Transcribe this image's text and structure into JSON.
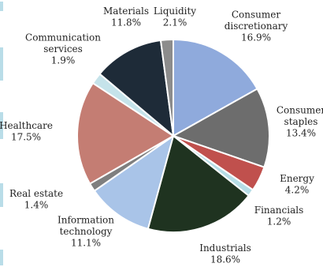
{
  "chart_data": {
    "type": "pie",
    "title": "",
    "slices": [
      {
        "label_lines": [
          "Consumer",
          "discretionary"
        ],
        "value_text": "16.9%",
        "value": 16.9,
        "color": "#8faadc"
      },
      {
        "label_lines": [
          "Consumer",
          "staples"
        ],
        "value_text": "13.4%",
        "value": 13.4,
        "color": "#6d6d6d"
      },
      {
        "label_lines": [
          "Energy"
        ],
        "value_text": "4.2%",
        "value": 4.2,
        "color": "#c0504d"
      },
      {
        "label_lines": [
          "Financials"
        ],
        "value_text": "1.2%",
        "value": 1.2,
        "color": "#b6dde6"
      },
      {
        "label_lines": [
          "Industrials"
        ],
        "value_text": "18.6%",
        "value": 18.6,
        "color": "#1f3320"
      },
      {
        "label_lines": [
          "Information",
          "technology"
        ],
        "value_text": "11.1%",
        "value": 11.1,
        "color": "#a9c4e8"
      },
      {
        "label_lines": [
          "Real estate"
        ],
        "value_text": "1.4%",
        "value": 1.4,
        "color": "#7f7f7f"
      },
      {
        "label_lines": [
          "Healthcare"
        ],
        "value_text": "17.5%",
        "value": 17.5,
        "color": "#c47d73"
      },
      {
        "label_lines": [
          "Communication",
          "services"
        ],
        "value_text": "1.9%",
        "value": 1.9,
        "color": "#c5e3ea"
      },
      {
        "label_lines": [
          "Materials"
        ],
        "value_text": "11.8%",
        "value": 11.8,
        "color": "#1e2b38"
      },
      {
        "label_lines": [
          "Liquidity"
        ],
        "value_text": "2.1%",
        "value": 2.1,
        "color": "#8c8c8c"
      }
    ]
  }
}
